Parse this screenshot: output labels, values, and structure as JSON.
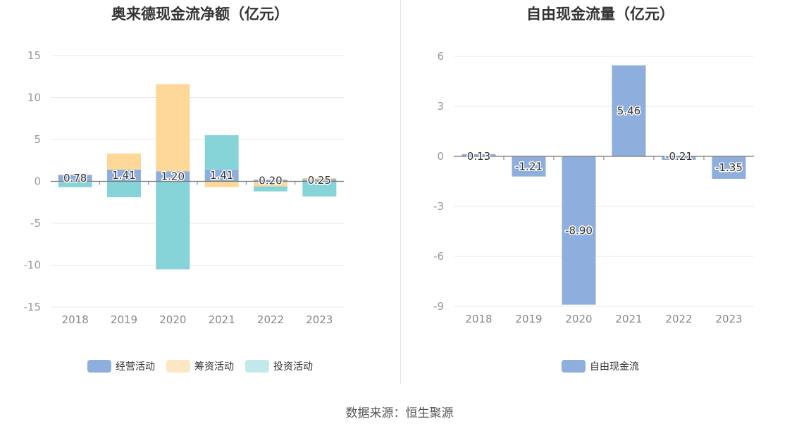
{
  "source": "数据来源：恒生聚源",
  "chart_data": [
    {
      "type": "bar",
      "title": "奥来德现金流净额（亿元）",
      "categories": [
        "2018",
        "2019",
        "2020",
        "2021",
        "2022",
        "2023"
      ],
      "ylim": [
        -15,
        15
      ],
      "yticks": [
        15,
        10,
        5,
        0,
        -5,
        -10,
        -15
      ],
      "stacked": true,
      "grid": true,
      "legend_position": "bottom",
      "series": [
        {
          "name": "经营活动",
          "color": "#8eaedd",
          "values": [
            0.78,
            1.41,
            1.2,
            1.41,
            0.2,
            0.25
          ],
          "labels": [
            "0.78",
            "1.41",
            "1.20",
            "1.41",
            "0.20",
            "0.25"
          ]
        },
        {
          "name": "筹资活动",
          "color": "#fdd898",
          "values": [
            -0.1,
            1.9,
            10.4,
            -0.7,
            -0.6,
            0.15
          ]
        },
        {
          "name": "投资活动",
          "color": "#87d4d8",
          "values": [
            -0.6,
            -1.9,
            -10.5,
            4.1,
            -0.6,
            -1.8
          ]
        }
      ]
    },
    {
      "type": "bar",
      "title": "自由现金流量（亿元）",
      "categories": [
        "2018",
        "2019",
        "2020",
        "2021",
        "2022",
        "2023"
      ],
      "ylim": [
        -9,
        6
      ],
      "yticks": [
        6,
        3,
        0,
        -3,
        -6,
        -9
      ],
      "grid": true,
      "legend_position": "bottom",
      "series": [
        {
          "name": "自由现金流",
          "color": "#8eaedd",
          "values": [
            0.13,
            -1.21,
            -8.9,
            5.46,
            -0.21,
            -1.35
          ],
          "labels": [
            "0.13",
            "-1.21",
            "-8.90",
            "5.46",
            "-0.21",
            "-1.35"
          ]
        }
      ]
    }
  ]
}
